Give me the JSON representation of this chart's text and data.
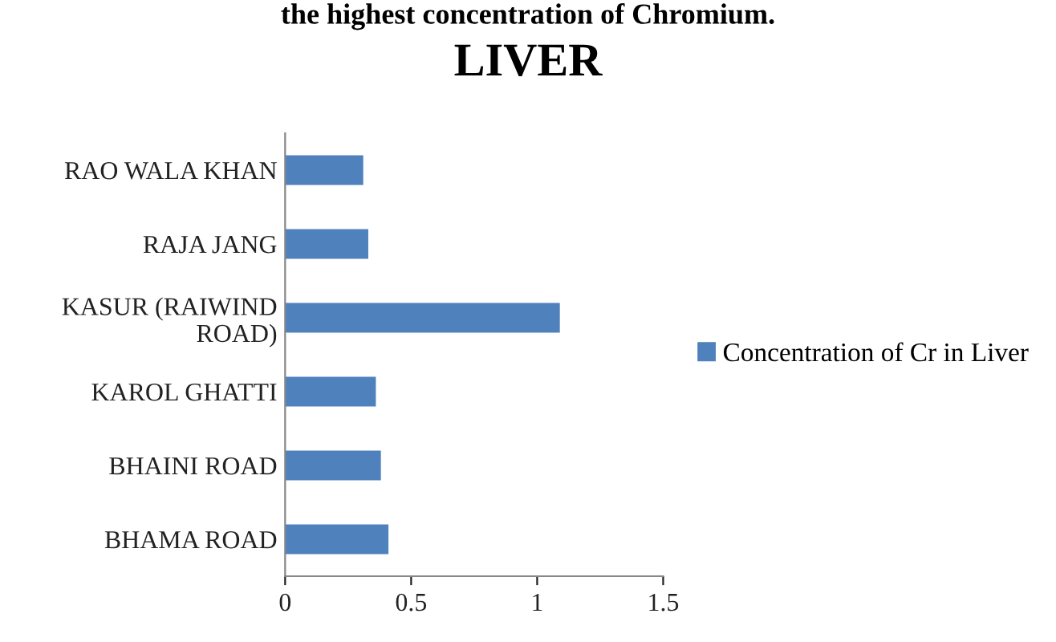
{
  "chart_data": {
    "type": "bar",
    "orientation": "horizontal",
    "title": "LIVER",
    "annotations": [
      "the highest concentration of Chromium."
    ],
    "categories": [
      "RAO WALA KHAN",
      "RAJA JANG",
      "KASUR (RAIWIND ROAD)",
      "KAROL GHATTI",
      "BHAINI ROAD",
      "BHAMA ROAD"
    ],
    "series": [
      {
        "name": "Concentration of Cr in Liver",
        "color": "#4f81bd",
        "values": [
          0.31,
          0.33,
          1.09,
          0.36,
          0.38,
          0.41
        ]
      }
    ],
    "xlim": [
      0,
      1.5
    ],
    "xticks": [
      0,
      0.5,
      1,
      1.5
    ],
    "grid": false,
    "legend": "right"
  }
}
